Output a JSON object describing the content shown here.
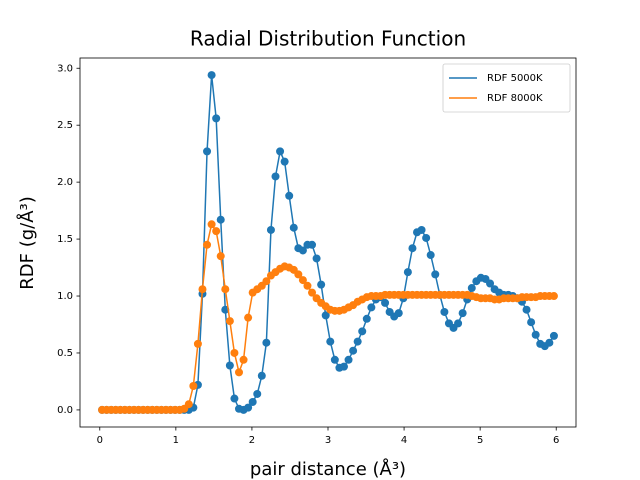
{
  "chart_data": {
    "type": "line",
    "title": "Radial Distribution Function",
    "x_label": "pair distance (Å³)",
    "y_label": "RDF (g/Å³)",
    "x": [
      0.03,
      0.09,
      0.15,
      0.21,
      0.27,
      0.33,
      0.39,
      0.45,
      0.51,
      0.57,
      0.63,
      0.69,
      0.75,
      0.81,
      0.87,
      0.93,
      0.99,
      1.05,
      1.11,
      1.17,
      1.23,
      1.29,
      1.35,
      1.41,
      1.47,
      1.53,
      1.59,
      1.65,
      1.71,
      1.77,
      1.83,
      1.89,
      1.95,
      2.01,
      2.07,
      2.13,
      2.19,
      2.25,
      2.31,
      2.37,
      2.43,
      2.49,
      2.55,
      2.61,
      2.67,
      2.73,
      2.79,
      2.85,
      2.91,
      2.97,
      3.03,
      3.09,
      3.15,
      3.21,
      3.27,
      3.33,
      3.39,
      3.45,
      3.51,
      3.57,
      3.63,
      3.69,
      3.75,
      3.81,
      3.87,
      3.93,
      3.99,
      4.05,
      4.11,
      4.17,
      4.23,
      4.29,
      4.35,
      4.41,
      4.47,
      4.53,
      4.59,
      4.65,
      4.71,
      4.77,
      4.83,
      4.89,
      4.95,
      5.01,
      5.07,
      5.13,
      5.19,
      5.25,
      5.31,
      5.37,
      5.43,
      5.49,
      5.55,
      5.61,
      5.67,
      5.73,
      5.79,
      5.85,
      5.91,
      5.97
    ],
    "series": [
      {
        "name": "RDF 5000K",
        "color": "#1f77b4",
        "values": [
          0,
          0,
          0,
          0,
          0,
          0,
          0,
          0,
          0,
          0,
          0,
          0,
          0,
          0,
          0,
          0,
          0,
          0,
          0,
          0,
          0.02,
          0.22,
          1.02,
          2.27,
          2.94,
          2.56,
          1.67,
          0.88,
          0.39,
          0.1,
          0.01,
          0.0,
          0.02,
          0.07,
          0.14,
          0.3,
          0.59,
          1.58,
          2.05,
          2.27,
          2.18,
          1.88,
          1.6,
          1.42,
          1.4,
          1.45,
          1.45,
          1.33,
          1.1,
          0.83,
          0.6,
          0.44,
          0.37,
          0.38,
          0.44,
          0.52,
          0.6,
          0.69,
          0.8,
          0.9,
          0.97,
          0.99,
          0.94,
          0.86,
          0.82,
          0.85,
          0.98,
          1.21,
          1.42,
          1.56,
          1.58,
          1.51,
          1.36,
          1.19,
          1.01,
          0.86,
          0.76,
          0.72,
          0.76,
          0.85,
          0.97,
          1.07,
          1.13,
          1.16,
          1.15,
          1.11,
          1.06,
          1.03,
          1.01,
          1.01,
          1.0,
          0.98,
          0.95,
          0.88,
          0.77,
          0.66,
          0.58,
          0.56,
          0.59,
          0.65
        ]
      },
      {
        "name": "RDF 8000K",
        "color": "#ff7f0e",
        "values": [
          0,
          0,
          0,
          0,
          0,
          0,
          0,
          0,
          0,
          0,
          0,
          0,
          0,
          0,
          0,
          0,
          0,
          0,
          0.01,
          0.05,
          0.21,
          0.58,
          1.06,
          1.45,
          1.63,
          1.57,
          1.35,
          1.06,
          0.78,
          0.5,
          0.33,
          0.44,
          0.81,
          1.03,
          1.06,
          1.09,
          1.13,
          1.18,
          1.21,
          1.24,
          1.26,
          1.25,
          1.23,
          1.19,
          1.14,
          1.09,
          1.03,
          0.98,
          0.94,
          0.91,
          0.88,
          0.87,
          0.87,
          0.88,
          0.9,
          0.92,
          0.95,
          0.97,
          0.99,
          1.0,
          1.0,
          1.0,
          1.01,
          1.01,
          1.01,
          1.01,
          1.01,
          1.01,
          1.01,
          1.01,
          1.01,
          1.01,
          1.01,
          1.01,
          1.01,
          1.01,
          1.01,
          1.01,
          1.01,
          1.01,
          1.01,
          1.0,
          0.99,
          0.98,
          0.98,
          0.98,
          0.97,
          0.97,
          0.98,
          0.98,
          0.98,
          0.98,
          0.99,
          0.99,
          0.99,
          0.99,
          1.0,
          1.0,
          1.0,
          1.0
        ]
      }
    ],
    "xlim": [
      -0.26,
      6.26
    ],
    "ylim": [
      -0.15,
      3.09
    ],
    "xticks": [
      0,
      1,
      2,
      3,
      4,
      5,
      6
    ],
    "yticks": [
      {
        "value": 0,
        "label": "0.0"
      },
      {
        "value": 0.5,
        "label": "0.5"
      },
      {
        "value": 1,
        "label": "1.0"
      },
      {
        "value": 1.5,
        "label": "1.5"
      },
      {
        "value": 2,
        "label": "2.0"
      },
      {
        "value": 2.5,
        "label": "2.5"
      },
      {
        "value": 3,
        "label": "3.0"
      }
    ],
    "markers": true,
    "legend": "upper right"
  }
}
